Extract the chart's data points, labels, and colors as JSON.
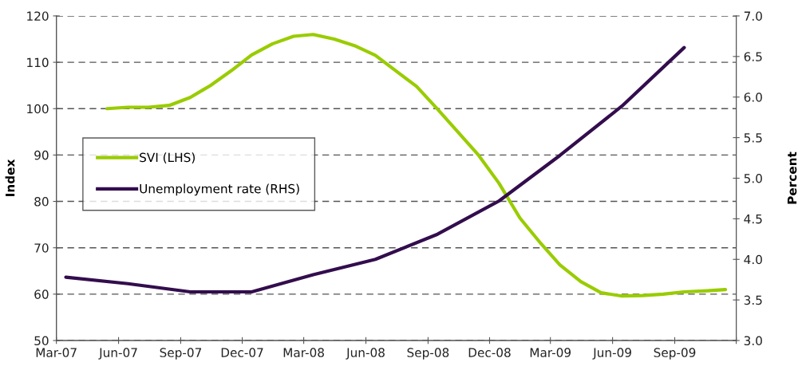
{
  "chart_data": {
    "type": "line",
    "ylabel": "Index",
    "y2label": "Percent",
    "xlim": [
      "2007-03-01",
      "2009-12-01"
    ],
    "xticks": [
      {
        "value": "2007-03-01",
        "label": "Mar-07"
      },
      {
        "value": "2007-06-01",
        "label": "Jun-07"
      },
      {
        "value": "2007-09-01",
        "label": "Sep-07"
      },
      {
        "value": "2007-12-01",
        "label": "Dec-07"
      },
      {
        "value": "2008-03-01",
        "label": "Mar-08"
      },
      {
        "value": "2008-06-01",
        "label": "Jun-08"
      },
      {
        "value": "2008-09-01",
        "label": "Sep-08"
      },
      {
        "value": "2008-12-01",
        "label": "Dec-08"
      },
      {
        "value": "2009-03-01",
        "label": "Mar-09"
      },
      {
        "value": "2009-06-01",
        "label": "Jun-09"
      },
      {
        "value": "2009-09-01",
        "label": "Sep-09"
      },
      {
        "value": "2009-12-01",
        "label": null
      }
    ],
    "ylim": [
      50,
      120
    ],
    "yticks": [
      50,
      60,
      70,
      80,
      90,
      100,
      110,
      120
    ],
    "y2lim": [
      3.0,
      7.0
    ],
    "y2ticks": [
      {
        "value": 3,
        "label": "3.0"
      },
      {
        "value": 3.5,
        "label": "3.5"
      },
      {
        "value": 4,
        "label": "4.0"
      },
      {
        "value": 4.5,
        "label": "4.5"
      },
      {
        "value": 5,
        "label": "5.0"
      },
      {
        "value": 5.5,
        "label": "5.5"
      },
      {
        "value": 6,
        "label": "6.0"
      },
      {
        "value": 6.5,
        "label": "6.5"
      },
      {
        "value": 7,
        "label": "7.0"
      }
    ],
    "grid": "y",
    "legend": "left",
    "line_style": "solid",
    "marker": "none",
    "series": [
      {
        "name": "SVI (LHS)",
        "color": "#99cc00",
        "x": [
          "2007-05-15",
          "2007-06-15",
          "2007-07-15",
          "2007-08-15",
          "2007-09-15",
          "2007-10-15",
          "2007-11-15",
          "2007-12-15",
          "2008-01-15",
          "2008-02-15",
          "2008-03-15",
          "2008-04-15",
          "2008-05-15",
          "2008-06-15",
          "2008-07-15",
          "2008-08-15",
          "2008-09-15",
          "2008-10-15",
          "2008-11-15",
          "2008-12-15",
          "2009-01-15",
          "2009-02-15",
          "2009-03-15",
          "2009-04-15",
          "2009-05-15",
          "2009-06-15",
          "2009-07-15",
          "2009-08-15",
          "2009-09-15",
          "2009-10-15",
          "2009-11-15"
        ],
        "values": [
          100.0,
          100.3,
          100.3,
          100.7,
          102.4,
          105.0,
          108.2,
          111.6,
          114.0,
          115.6,
          116.0,
          115.0,
          113.6,
          111.5,
          108.2,
          104.8,
          99.9,
          95.0,
          89.9,
          83.9,
          76.4,
          70.9,
          66.3,
          62.7,
          60.3,
          59.6,
          59.7,
          60.0,
          60.5,
          60.7,
          61.0
        ]
      },
      {
        "name": "Unemployment rate (RHS)",
        "color": "#330d4d",
        "axis": "y2",
        "x": [
          "2007-03-15",
          "2007-06-15",
          "2007-09-15",
          "2007-12-15",
          "2008-03-15",
          "2008-06-15",
          "2008-09-15",
          "2008-12-15",
          "2009-03-15",
          "2009-06-15",
          "2009-09-15"
        ],
        "values": [
          3.78,
          3.7,
          3.6,
          3.6,
          3.81,
          4.0,
          4.31,
          4.72,
          5.28,
          5.89,
          6.61
        ]
      }
    ]
  }
}
